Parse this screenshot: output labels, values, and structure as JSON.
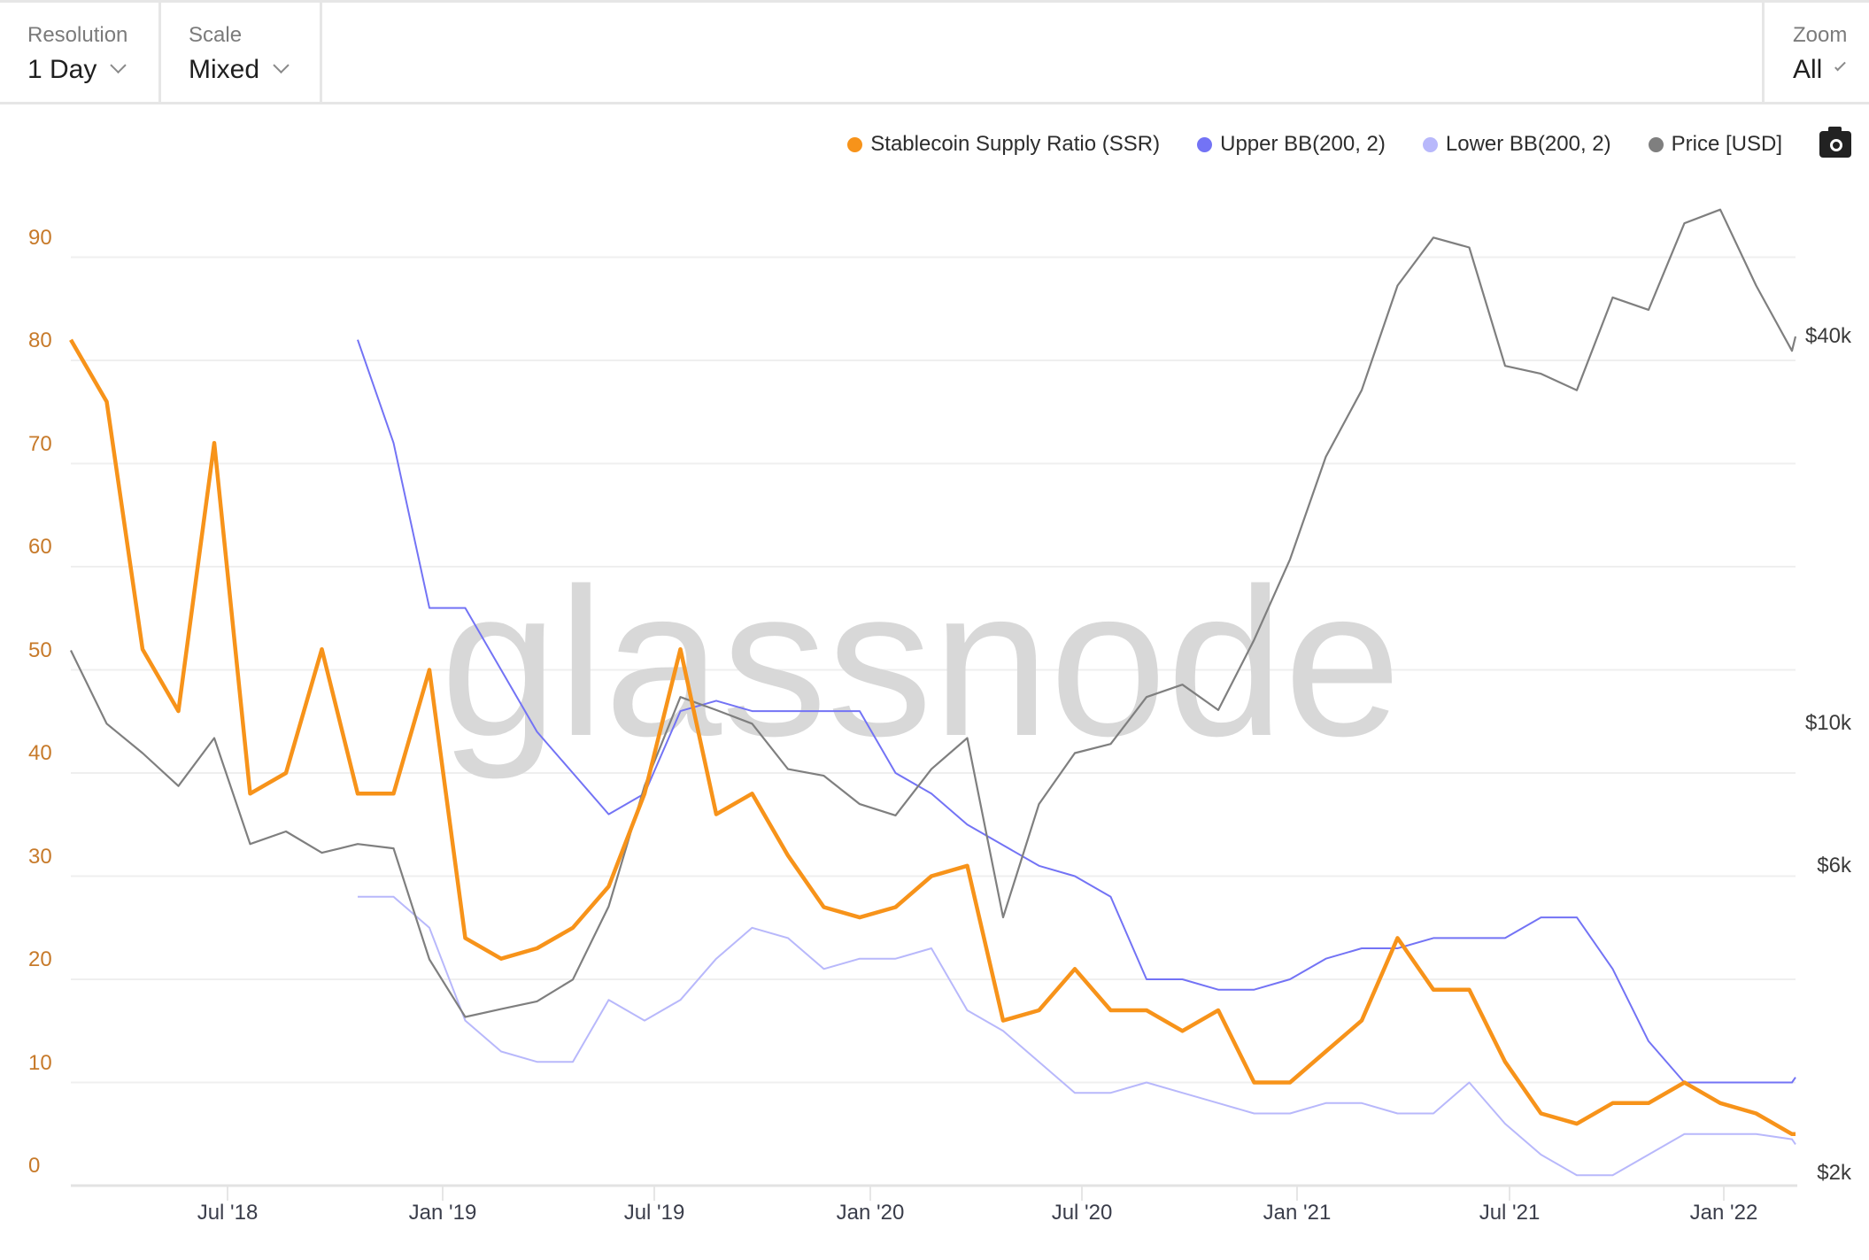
{
  "toolbar": {
    "resolution": {
      "label": "Resolution",
      "value": "1 Day"
    },
    "scale": {
      "label": "Scale",
      "value": "Mixed"
    },
    "zoom": {
      "label": "Zoom",
      "value": "All"
    }
  },
  "legend": {
    "items": [
      {
        "label": "Stablecoin Supply Ratio (SSR)",
        "color": "#f7931a"
      },
      {
        "label": "Upper BB(200, 2)",
        "color": "#7373f5"
      },
      {
        "label": "Lower BB(200, 2)",
        "color": "#b8b8fb"
      },
      {
        "label": "Price [USD]",
        "color": "#7f7f7f"
      }
    ],
    "screenshot_icon": "camera-icon"
  },
  "watermark": "glassnode",
  "chart_data": {
    "type": "line",
    "title": "",
    "xlabel": "",
    "ylabel": "",
    "x_tick_labels": [
      "Jul '18",
      "Jan '19",
      "Jul '19",
      "Jan '20",
      "Jul '20",
      "Jan '21",
      "Jul '21",
      "Jan '22"
    ],
    "y_left": {
      "ticks": [
        0,
        10,
        20,
        30,
        40,
        50,
        60,
        70,
        80,
        90
      ],
      "range": [
        0,
        95
      ],
      "color": "#c77a2a"
    },
    "y_right": {
      "ticks": [
        "$2k",
        "$6k",
        "$10k",
        "$40k"
      ],
      "scale": "log"
    },
    "grid": true,
    "legend_position": "top-right",
    "x": [
      "2018-01",
      "2018-02",
      "2018-03",
      "2018-04",
      "2018-05",
      "2018-06",
      "2018-07",
      "2018-08",
      "2018-09",
      "2018-10",
      "2018-11",
      "2018-12",
      "2019-01",
      "2019-02",
      "2019-03",
      "2019-04",
      "2019-05",
      "2019-06",
      "2019-07",
      "2019-08",
      "2019-09",
      "2019-10",
      "2019-11",
      "2019-12",
      "2020-01",
      "2020-02",
      "2020-03",
      "2020-04",
      "2020-05",
      "2020-06",
      "2020-07",
      "2020-08",
      "2020-09",
      "2020-10",
      "2020-11",
      "2020-12",
      "2021-01",
      "2021-02",
      "2021-03",
      "2021-04",
      "2021-05",
      "2021-06",
      "2021-07",
      "2021-08",
      "2021-09",
      "2021-10",
      "2021-11",
      "2021-12",
      "2022-01",
      "2022-02"
    ],
    "series": [
      {
        "name": "Stablecoin Supply Ratio (SSR)",
        "axis": "left",
        "values": [
          82,
          76,
          52,
          46,
          72,
          38,
          40,
          52,
          38,
          38,
          50,
          24,
          22,
          23,
          25,
          29,
          38,
          52,
          36,
          38,
          32,
          27,
          26,
          27,
          30,
          31,
          16,
          17,
          21,
          17,
          17,
          15,
          17,
          10,
          10,
          13,
          16,
          24,
          19,
          19,
          12,
          7,
          6,
          8,
          8,
          10,
          8,
          7,
          5,
          5
        ]
      },
      {
        "name": "Upper BB(200, 2)",
        "axis": "left",
        "values": [
          null,
          null,
          null,
          null,
          null,
          null,
          null,
          null,
          82,
          72,
          56,
          56,
          50,
          44,
          40,
          36,
          38,
          46,
          47,
          46,
          46,
          46,
          46,
          40,
          38,
          35,
          33,
          31,
          30,
          28,
          20,
          20,
          19,
          19,
          20,
          22,
          23,
          23,
          24,
          24,
          24,
          26,
          26,
          21,
          14,
          10,
          10,
          10,
          10,
          10.5
        ]
      },
      {
        "name": "Lower BB(200, 2)",
        "axis": "left",
        "values": [
          null,
          null,
          null,
          null,
          null,
          null,
          null,
          null,
          28,
          28,
          25,
          16,
          13,
          12,
          12,
          18,
          16,
          18,
          22,
          25,
          24,
          21,
          22,
          22,
          23,
          17,
          15,
          12,
          9,
          9,
          10,
          9,
          8,
          7,
          7,
          8,
          8,
          7,
          7,
          10,
          6,
          3,
          1,
          1,
          3,
          5,
          5,
          5,
          4.5,
          4
        ]
      },
      {
        "name": "Price [USD]",
        "axis": "right",
        "values": [
          13000,
          10000,
          9000,
          8000,
          9500,
          6500,
          6800,
          6300,
          6500,
          6400,
          4300,
          3500,
          3600,
          3700,
          4000,
          5200,
          8000,
          11000,
          10500,
          10000,
          8500,
          8300,
          7500,
          7200,
          8500,
          9500,
          5000,
          7500,
          9000,
          9300,
          11000,
          11500,
          10500,
          13500,
          18000,
          26000,
          33000,
          48000,
          57000,
          55000,
          36000,
          35000,
          33000,
          46000,
          44000,
          60000,
          63000,
          48000,
          38000,
          40000
        ]
      }
    ]
  }
}
